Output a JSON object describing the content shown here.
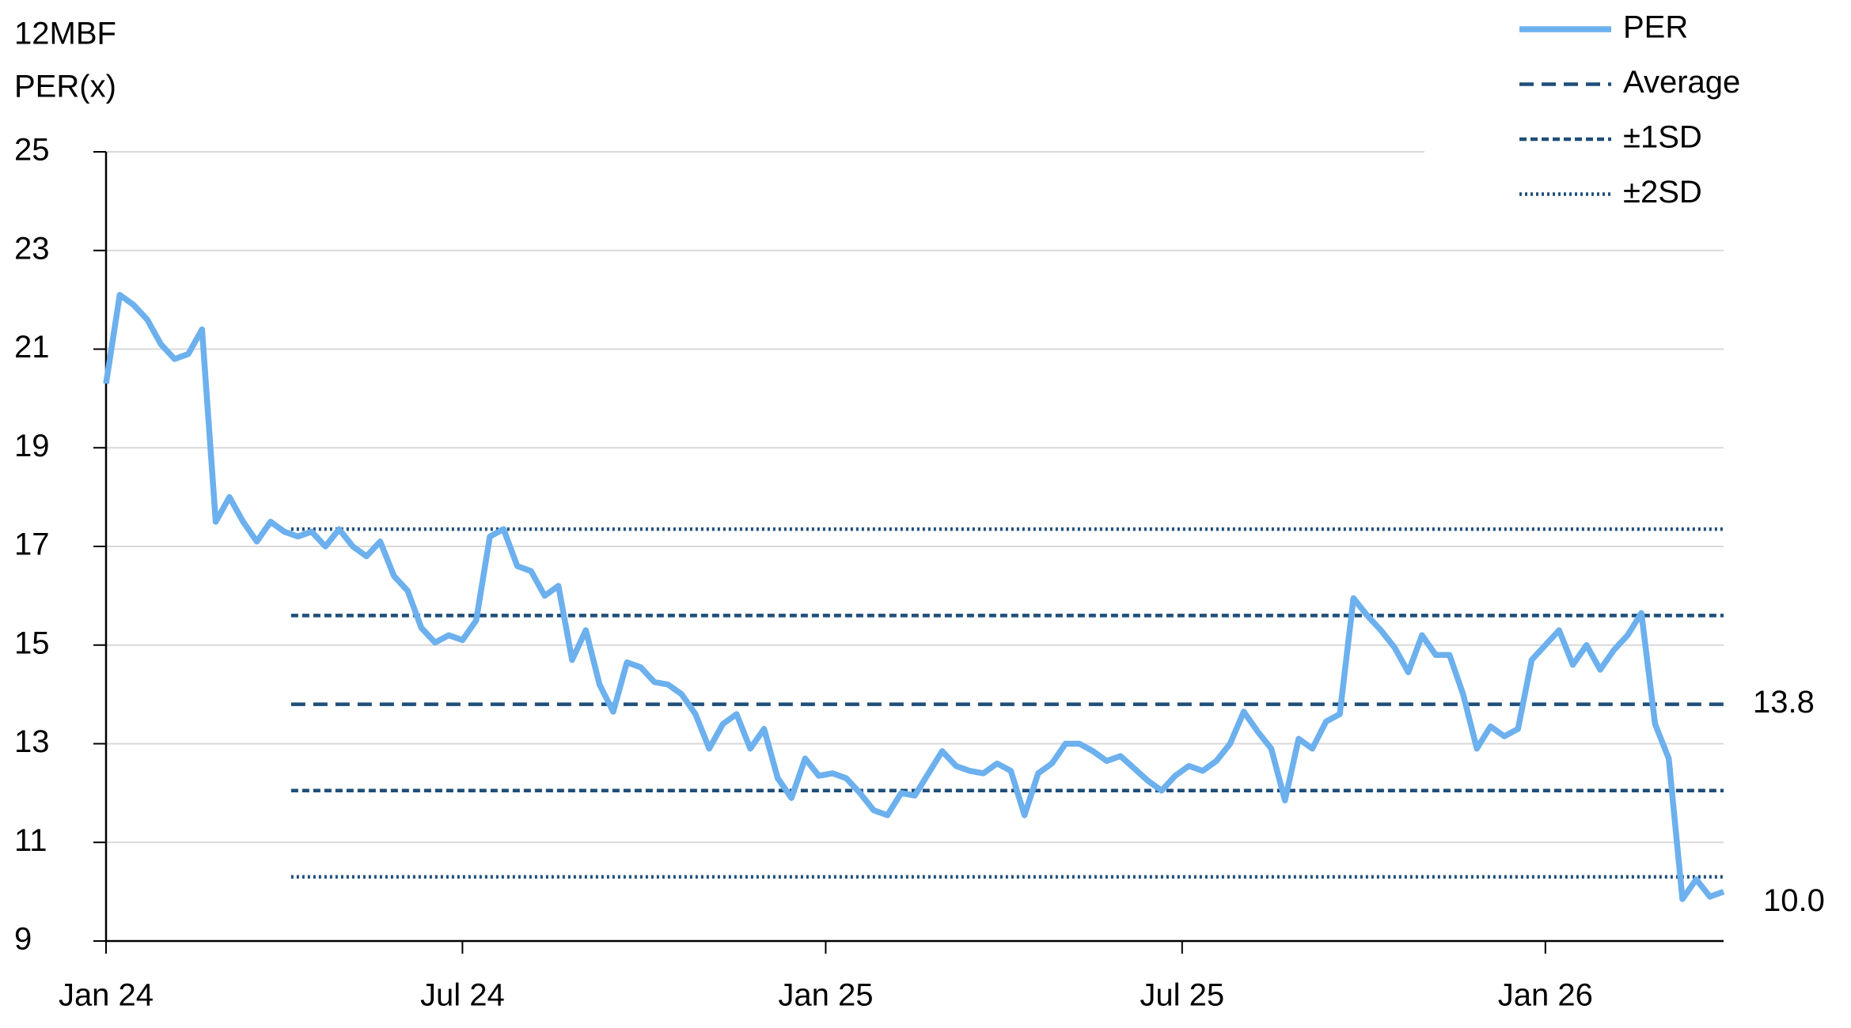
{
  "chart_data": {
    "type": "line",
    "ylabel": [
      "12MBF",
      "PER(x)"
    ],
    "x": [
      0,
      1,
      2,
      3,
      4,
      5,
      6,
      7,
      8,
      9,
      10,
      11,
      12,
      13,
      14,
      15,
      16,
      17,
      18,
      19,
      20,
      21,
      22,
      23,
      24,
      25,
      26,
      27,
      28,
      29,
      30,
      31,
      32,
      33,
      34,
      35,
      36,
      37,
      38,
      39,
      40,
      41,
      42,
      43,
      44,
      45,
      46,
      47,
      48,
      49,
      50,
      51,
      52,
      53,
      54,
      55,
      56,
      57,
      58,
      59,
      60,
      61,
      62,
      63,
      64,
      65,
      66,
      67,
      68,
      69,
      70,
      71,
      72,
      73,
      74,
      75,
      76,
      77,
      78,
      79,
      80,
      81,
      82,
      83,
      84,
      85,
      86,
      87,
      88,
      89,
      90,
      91,
      92,
      93,
      94,
      95,
      96,
      97,
      98,
      99,
      100,
      101,
      102,
      103,
      104,
      105,
      106,
      107,
      108,
      109,
      110,
      111,
      112,
      113,
      114,
      115,
      116,
      117,
      118
    ],
    "xlim": [
      0,
      118
    ],
    "xticks": [
      {
        "value": 0,
        "label": "Jan 24"
      },
      {
        "value": 26,
        "label": "Jul 24"
      },
      {
        "value": 52.5,
        "label": "Jan 25"
      },
      {
        "value": 78.5,
        "label": "Jul 25"
      },
      {
        "value": 105,
        "label": "Jan 26"
      }
    ],
    "ylim": [
      9,
      25
    ],
    "yticks": [
      9,
      11,
      13,
      15,
      17,
      19,
      21,
      23,
      25
    ],
    "grid": true,
    "series": [
      {
        "name": "PER",
        "color": "#6cb0ee",
        "values": [
          20.3,
          22.1,
          21.9,
          21.6,
          21.1,
          20.8,
          20.9,
          21.4,
          17.5,
          18.0,
          17.5,
          17.1,
          17.5,
          17.3,
          17.2,
          17.3,
          17.0,
          17.35,
          17.0,
          16.8,
          17.1,
          16.4,
          16.1,
          15.35,
          15.05,
          15.2,
          15.1,
          15.5,
          17.2,
          17.35,
          16.6,
          16.5,
          16.0,
          16.2,
          14.7,
          15.3,
          14.2,
          13.65,
          14.65,
          14.55,
          14.25,
          14.2,
          14.0,
          13.6,
          12.9,
          13.4,
          13.6,
          12.9,
          13.3,
          12.3,
          11.9,
          12.7,
          12.35,
          12.4,
          12.3,
          12.0,
          11.65,
          11.55,
          12.0,
          11.95,
          12.4,
          12.85,
          12.55,
          12.45,
          12.4,
          12.6,
          12.45,
          11.55,
          12.4,
          12.6,
          13.0,
          13.0,
          12.85,
          12.65,
          12.75,
          12.5,
          12.25,
          12.05,
          12.35,
          12.55,
          12.45,
          12.65,
          13.0,
          13.65,
          13.25,
          12.9,
          11.85,
          13.1,
          12.9,
          13.45,
          13.6,
          15.95,
          15.6,
          15.3,
          14.95,
          14.45,
          15.2,
          14.8,
          14.8,
          14.0,
          12.9,
          13.35,
          13.15,
          13.3,
          14.7,
          15.0,
          15.3,
          14.6,
          15.0,
          14.5,
          14.9,
          15.2,
          15.65,
          13.4,
          12.7,
          9.85,
          10.25,
          9.9,
          10.0
        ],
        "last_value_label": "10.0"
      }
    ],
    "bands": [
      {
        "name": "Average",
        "color": "#1f4e79",
        "dash": "18,10",
        "values": [
          13.8
        ],
        "show_label": true
      },
      {
        "name": "±1SD",
        "color": "#1f4e79",
        "dash": "9,5",
        "values": [
          15.6,
          12.05
        ]
      },
      {
        "name": "±2SD",
        "color": "#1f4e79",
        "dash": "3,4",
        "values": [
          17.35,
          10.3
        ]
      }
    ],
    "band_x": [
      13.5,
      118
    ]
  }
}
